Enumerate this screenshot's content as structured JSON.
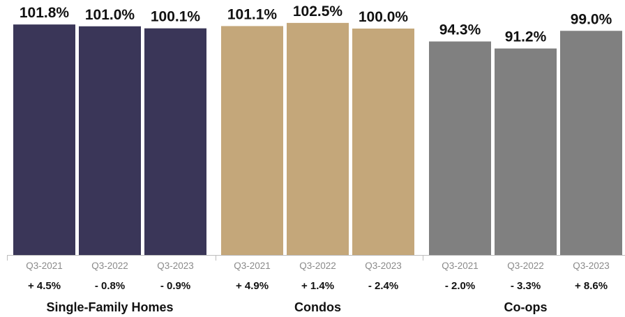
{
  "chart_data": {
    "type": "bar",
    "title": "",
    "xlabel": "",
    "ylabel": "",
    "ylim": [
      0,
      103
    ],
    "grid": false,
    "groups": [
      {
        "name": "Single-Family Homes",
        "color": "#3a3658",
        "bars": [
          {
            "category": "Q3-2021",
            "value": 101.8,
            "value_label": "101.8%",
            "change": "+ 4.5%"
          },
          {
            "category": "Q3-2022",
            "value": 101.0,
            "value_label": "101.0%",
            "change": "- 0.8%"
          },
          {
            "category": "Q3-2023",
            "value": 100.1,
            "value_label": "100.1%",
            "change": "- 0.9%"
          }
        ]
      },
      {
        "name": "Condos",
        "color": "#c4a77a",
        "bars": [
          {
            "category": "Q3-2021",
            "value": 101.1,
            "value_label": "101.1%",
            "change": "+ 4.9%"
          },
          {
            "category": "Q3-2022",
            "value": 102.5,
            "value_label": "102.5%",
            "change": "+ 1.4%"
          },
          {
            "category": "Q3-2023",
            "value": 100.0,
            "value_label": "100.0%",
            "change": "- 2.4%"
          }
        ]
      },
      {
        "name": "Co-ops",
        "color": "#808080",
        "bars": [
          {
            "category": "Q3-2021",
            "value": 94.3,
            "value_label": "94.3%",
            "change": "- 2.0%"
          },
          {
            "category": "Q3-2022",
            "value": 91.2,
            "value_label": "91.2%",
            "change": "- 3.3%"
          },
          {
            "category": "Q3-2023",
            "value": 99.0,
            "value_label": "99.0%",
            "change": "+ 8.6%"
          }
        ]
      }
    ]
  }
}
